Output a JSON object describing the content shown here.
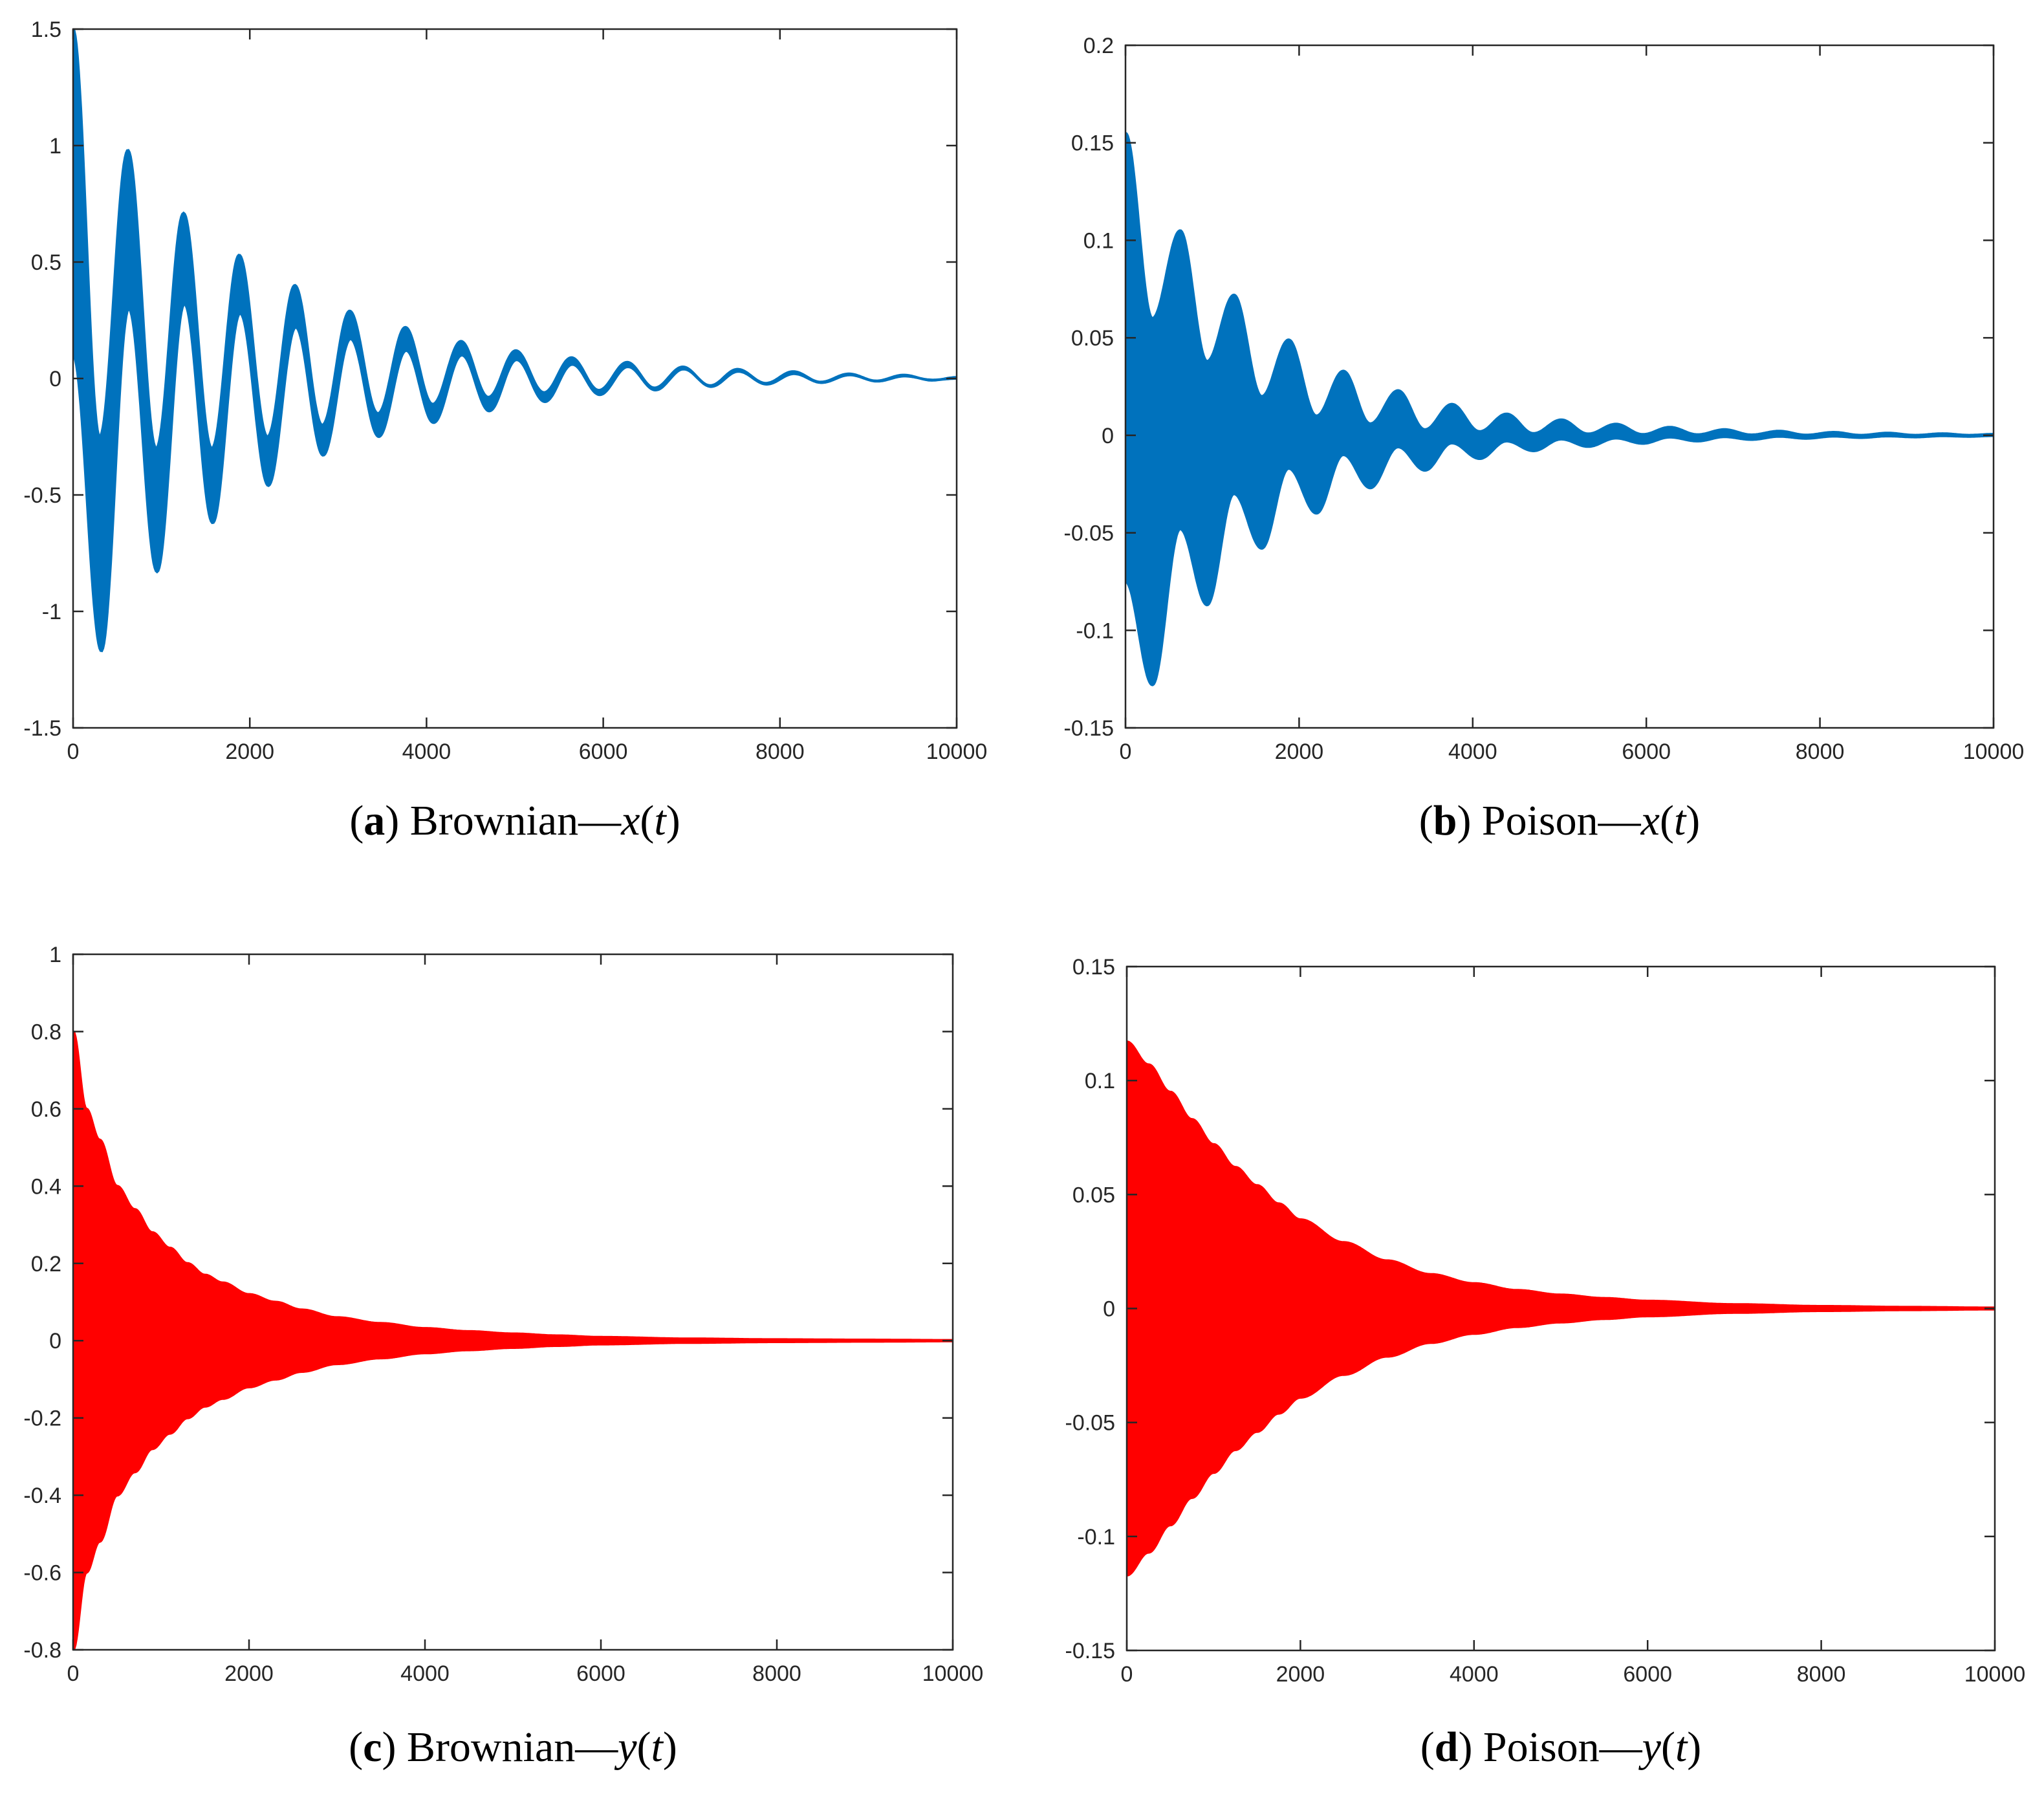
{
  "chart_data": [
    {
      "type": "area",
      "id": "a",
      "caption": {
        "letter": "a",
        "text": "Brownian—",
        "var": "x",
        "arg": "t"
      },
      "color": "#0072BD",
      "xlim": [
        0,
        10000
      ],
      "ylim": [
        -1.5,
        1.5
      ],
      "xticks": [
        "0",
        "2000",
        "4000",
        "6000",
        "8000",
        "10000"
      ],
      "yticks": [
        "1.5",
        "1",
        "0.5",
        "0",
        "-0.5",
        "-1",
        "-1.5"
      ],
      "series": [
        {
          "name": "upper envelope",
          "x": [
            0,
            300,
            620,
            940,
            1250,
            1570,
            1880,
            2200,
            2510,
            2820,
            3130,
            3450,
            3760,
            4070,
            4390,
            4700,
            5010,
            5330,
            5640,
            5950,
            6270,
            6580,
            6900,
            7210,
            7520,
            7840,
            8150,
            8460,
            8780,
            9090,
            9400,
            9720,
            10000
          ],
          "y": [
            1.5,
            -0.25,
            0.98,
            -0.3,
            0.71,
            -0.3,
            0.53,
            -0.25,
            0.4,
            -0.2,
            0.29,
            -0.15,
            0.22,
            -0.11,
            0.16,
            -0.08,
            0.12,
            -0.06,
            0.09,
            -0.05,
            0.07,
            -0.04,
            0.05,
            -0.03,
            0.04,
            -0.02,
            0.03,
            -0.015,
            0.02,
            -0.01,
            0.015,
            -0.008,
            0.005
          ]
        },
        {
          "name": "lower envelope",
          "x": [
            0,
            320,
            630,
            950,
            1260,
            1580,
            1890,
            2210,
            2520,
            2830,
            3140,
            3460,
            3770,
            4080,
            4400,
            4710,
            5020,
            5340,
            5650,
            5960,
            6280,
            6590,
            6910,
            7220,
            7530,
            7850,
            8160,
            8470,
            8790,
            9100,
            9410,
            9730,
            10000
          ],
          "y": [
            0.1,
            -1.17,
            0.3,
            -0.83,
            0.32,
            -0.62,
            0.28,
            -0.46,
            0.22,
            -0.33,
            0.17,
            -0.25,
            0.12,
            -0.19,
            0.1,
            -0.14,
            0.08,
            -0.1,
            0.06,
            -0.07,
            0.05,
            -0.05,
            0.04,
            -0.035,
            0.03,
            -0.025,
            0.02,
            -0.018,
            0.015,
            -0.012,
            0.01,
            -0.006,
            0.0
          ]
        }
      ]
    },
    {
      "type": "area",
      "id": "b",
      "caption": {
        "letter": "b",
        "text": "Poison—",
        "var": "x",
        "arg": "t"
      },
      "color": "#0072BD",
      "xlim": [
        0,
        10000
      ],
      "ylim": [
        -0.15,
        0.2
      ],
      "xticks": [
        "0",
        "2000",
        "4000",
        "6000",
        "8000",
        "10000"
      ],
      "yticks": [
        "0.2",
        "0.15",
        "0.1",
        "0.05",
        "0",
        "-0.05",
        "-0.1",
        "-0.15"
      ],
      "series": [
        {
          "name": "upper envelope",
          "x": [
            0,
            310,
            630,
            940,
            1250,
            1570,
            1880,
            2200,
            2510,
            2820,
            3140,
            3450,
            3760,
            4080,
            4390,
            4700,
            5020,
            5330,
            5650,
            5960,
            6270,
            6590,
            6900,
            7210,
            7530,
            7840,
            8160,
            8470,
            8780,
            9100,
            9410,
            9720,
            10000
          ],
          "y": [
            0.155,
            0.06,
            0.105,
            0.038,
            0.072,
            0.02,
            0.049,
            0.01,
            0.033,
            0.006,
            0.023,
            0.003,
            0.016,
            0.002,
            0.011,
            0.001,
            0.008,
            0.0008,
            0.0058,
            0.0005,
            0.0042,
            0.0004,
            0.003,
            0.0003,
            0.0022,
            0.0002,
            0.0016,
            0.0001,
            0.0012,
            0.0001,
            0.0009,
            0.0001,
            0.0006
          ]
        },
        {
          "name": "lower envelope",
          "x": [
            0,
            310,
            630,
            940,
            1250,
            1570,
            1880,
            2200,
            2510,
            2820,
            3140,
            3450,
            3760,
            4080,
            4390,
            4700,
            5020,
            5330,
            5650,
            5960,
            6270,
            6590,
            6900,
            7210,
            7530,
            7840,
            8160,
            8470,
            8780,
            9100,
            9410,
            9720,
            10000
          ],
          "y": [
            -0.075,
            -0.128,
            -0.048,
            -0.087,
            -0.03,
            -0.058,
            -0.017,
            -0.04,
            -0.01,
            -0.027,
            -0.006,
            -0.018,
            -0.004,
            -0.012,
            -0.003,
            -0.008,
            -0.002,
            -0.0058,
            -0.0015,
            -0.0042,
            -0.001,
            -0.003,
            -0.0008,
            -0.0022,
            -0.0006,
            -0.0016,
            -0.0005,
            -0.0012,
            -0.0004,
            -0.0009,
            -0.0003,
            -0.0006,
            -0.0002
          ]
        }
      ]
    },
    {
      "type": "area",
      "id": "c",
      "caption": {
        "letter": "c",
        "text": "Brownian—",
        "var": "y",
        "arg": "t"
      },
      "color": "#FF0000",
      "xlim": [
        0,
        10000
      ],
      "ylim": [
        -0.8,
        1
      ],
      "xticks": [
        "0",
        "2000",
        "4000",
        "6000",
        "8000",
        "10000"
      ],
      "yticks": [
        "1",
        "0.8",
        "0.6",
        "0.4",
        "0.2",
        "0",
        "-0.2",
        "-0.4",
        "-0.6",
        "-0.8"
      ],
      "series": [
        {
          "name": "upper envelope",
          "x": [
            0,
            150,
            300,
            500,
            700,
            900,
            1100,
            1300,
            1500,
            1700,
            2000,
            2300,
            2600,
            3000,
            3500,
            4000,
            4500,
            5000,
            5500,
            6000,
            7000,
            8000,
            9000,
            10000
          ],
          "y": [
            0.8,
            0.6,
            0.52,
            0.4,
            0.34,
            0.28,
            0.24,
            0.2,
            0.17,
            0.15,
            0.12,
            0.1,
            0.08,
            0.06,
            0.045,
            0.032,
            0.024,
            0.018,
            0.013,
            0.009,
            0.005,
            0.003,
            0.002,
            0.001
          ]
        },
        {
          "name": "lower envelope",
          "x": [
            0,
            150,
            300,
            500,
            700,
            900,
            1100,
            1300,
            1500,
            1700,
            2000,
            2300,
            2600,
            3000,
            3500,
            4000,
            4500,
            5000,
            5500,
            6000,
            7000,
            8000,
            9000,
            10000
          ],
          "y": [
            -0.8,
            -0.6,
            -0.52,
            -0.4,
            -0.34,
            -0.28,
            -0.24,
            -0.2,
            -0.17,
            -0.15,
            -0.12,
            -0.1,
            -0.08,
            -0.06,
            -0.045,
            -0.032,
            -0.024,
            -0.018,
            -0.013,
            -0.009,
            -0.005,
            -0.003,
            -0.002,
            -0.001
          ]
        }
      ]
    },
    {
      "type": "area",
      "id": "d",
      "caption": {
        "letter": "d",
        "text": "Poison—",
        "var": "y",
        "arg": "t"
      },
      "color": "#FF0000",
      "xlim": [
        0,
        10000
      ],
      "ylim": [
        -0.15,
        0.15
      ],
      "xticks": [
        "0",
        "2000",
        "4000",
        "6000",
        "8000",
        "10000"
      ],
      "yticks": [
        "0.15",
        "0.1",
        "0.05",
        "0",
        "-0.05",
        "-0.1",
        "-0.15"
      ],
      "series": [
        {
          "name": "upper envelope",
          "x": [
            0,
            250,
            500,
            750,
            1000,
            1250,
            1500,
            1750,
            2000,
            2500,
            3000,
            3500,
            4000,
            4500,
            5000,
            5500,
            6000,
            7000,
            8000,
            9000,
            10000
          ],
          "y": [
            0.117,
            0.107,
            0.095,
            0.083,
            0.072,
            0.062,
            0.054,
            0.046,
            0.039,
            0.029,
            0.021,
            0.015,
            0.011,
            0.008,
            0.006,
            0.0045,
            0.0033,
            0.0018,
            0.001,
            0.0006,
            0.0003
          ]
        },
        {
          "name": "lower envelope",
          "x": [
            0,
            250,
            500,
            750,
            1000,
            1250,
            1500,
            1750,
            2000,
            2500,
            3000,
            3500,
            4000,
            4500,
            5000,
            5500,
            6000,
            7000,
            8000,
            9000,
            10000
          ],
          "y": [
            -0.117,
            -0.107,
            -0.095,
            -0.083,
            -0.072,
            -0.062,
            -0.054,
            -0.046,
            -0.039,
            -0.029,
            -0.021,
            -0.015,
            -0.011,
            -0.008,
            -0.006,
            -0.0045,
            -0.0033,
            -0.0018,
            -0.001,
            -0.0006,
            -0.0003
          ]
        }
      ]
    }
  ]
}
